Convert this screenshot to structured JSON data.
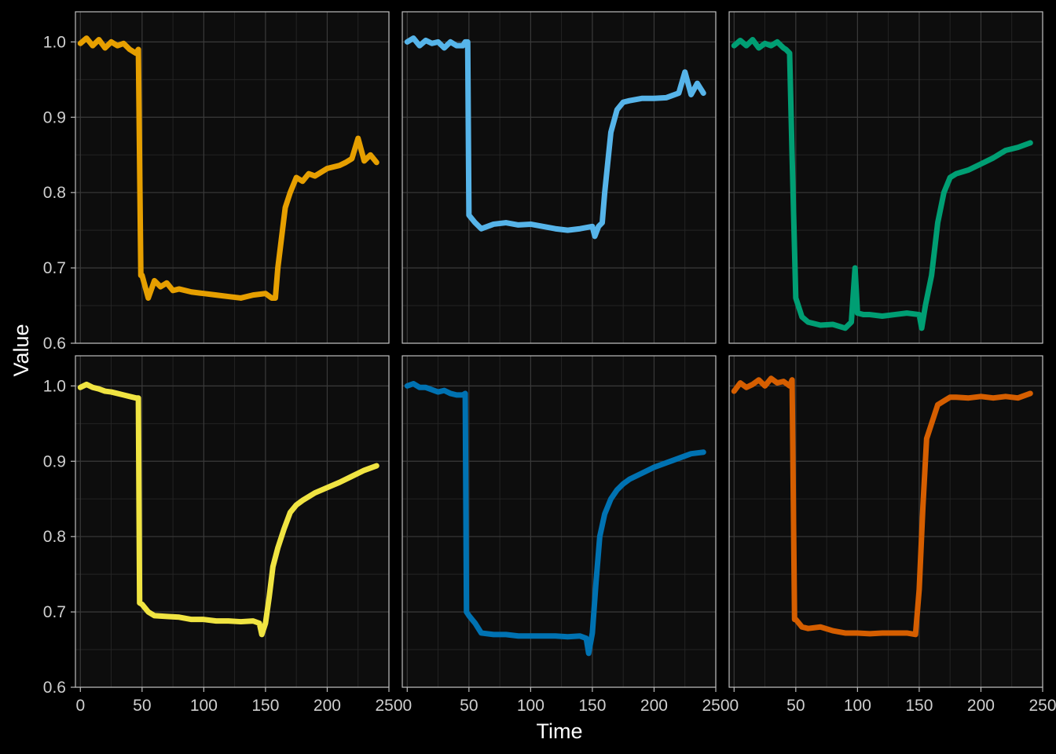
{
  "chart_data": {
    "type": "line",
    "layout": "facet grid, 2 rows x 3 columns, shared axes",
    "xlabel": "Time",
    "ylabel": "Value",
    "xlim": [
      -4,
      250
    ],
    "ylim": [
      0.6,
      1.04
    ],
    "xticks": [
      0,
      50,
      100,
      150,
      200,
      250
    ],
    "yticks": [
      0.6,
      0.7,
      0.8,
      0.9,
      1.0
    ],
    "ytick_labels": [
      "0.6",
      "0.7",
      "0.8",
      "0.9",
      "1.0"
    ],
    "background": "#000000",
    "panel_background": "#0d0d0d",
    "panels": [
      {
        "row": 0,
        "col": 0,
        "color": "#E69F00",
        "x": [
          0,
          5,
          10,
          15,
          20,
          25,
          30,
          35,
          40,
          45,
          47,
          49,
          50,
          55,
          60,
          65,
          70,
          75,
          80,
          90,
          100,
          110,
          120,
          130,
          140,
          150,
          155,
          158,
          160,
          163,
          166,
          170,
          175,
          180,
          185,
          190,
          200,
          210,
          215,
          220,
          225,
          230,
          235,
          240
        ],
        "values": [
          0.998,
          1.005,
          0.995,
          1.003,
          0.992,
          1.0,
          0.995,
          0.998,
          0.99,
          0.985,
          0.99,
          0.69,
          0.69,
          0.66,
          0.683,
          0.675,
          0.68,
          0.67,
          0.672,
          0.668,
          0.666,
          0.664,
          0.662,
          0.66,
          0.664,
          0.666,
          0.66,
          0.66,
          0.7,
          0.74,
          0.78,
          0.8,
          0.82,
          0.815,
          0.825,
          0.822,
          0.832,
          0.836,
          0.84,
          0.845,
          0.872,
          0.842,
          0.85,
          0.84
        ]
      },
      {
        "row": 0,
        "col": 1,
        "color": "#56B4E9",
        "x": [
          0,
          5,
          10,
          15,
          20,
          25,
          30,
          35,
          40,
          45,
          47,
          49,
          50,
          55,
          60,
          70,
          80,
          90,
          100,
          110,
          120,
          130,
          140,
          150,
          152,
          155,
          158,
          160,
          165,
          170,
          175,
          180,
          190,
          200,
          210,
          220,
          225,
          230,
          235,
          240
        ],
        "values": [
          1.0,
          1.005,
          0.995,
          1.002,
          0.998,
          1.0,
          0.992,
          1.0,
          0.995,
          0.995,
          1.0,
          1.0,
          0.77,
          0.76,
          0.752,
          0.758,
          0.76,
          0.757,
          0.758,
          0.755,
          0.752,
          0.75,
          0.752,
          0.755,
          0.742,
          0.755,
          0.76,
          0.8,
          0.88,
          0.91,
          0.92,
          0.922,
          0.925,
          0.925,
          0.926,
          0.932,
          0.96,
          0.93,
          0.945,
          0.932
        ]
      },
      {
        "row": 0,
        "col": 2,
        "color": "#009E73",
        "x": [
          0,
          5,
          10,
          15,
          20,
          25,
          30,
          35,
          40,
          42,
          45,
          47,
          50,
          55,
          60,
          70,
          80,
          90,
          95,
          98,
          100,
          105,
          110,
          120,
          130,
          140,
          150,
          152,
          155,
          160,
          165,
          170,
          175,
          180,
          190,
          200,
          210,
          220,
          230,
          240
        ],
        "values": [
          0.995,
          1.002,
          0.995,
          1.003,
          0.992,
          0.998,
          0.995,
          1.0,
          0.992,
          0.99,
          0.985,
          0.85,
          0.66,
          0.635,
          0.628,
          0.624,
          0.625,
          0.62,
          0.628,
          0.7,
          0.64,
          0.638,
          0.638,
          0.636,
          0.638,
          0.64,
          0.638,
          0.62,
          0.65,
          0.69,
          0.76,
          0.8,
          0.82,
          0.825,
          0.83,
          0.838,
          0.846,
          0.856,
          0.86,
          0.866
        ]
      },
      {
        "row": 1,
        "col": 0,
        "color": "#F0E442",
        "x": [
          0,
          5,
          10,
          15,
          20,
          25,
          30,
          35,
          40,
          45,
          47,
          48,
          50,
          55,
          60,
          70,
          80,
          90,
          100,
          110,
          120,
          130,
          140,
          145,
          147,
          150,
          153,
          156,
          160,
          165,
          170,
          175,
          180,
          190,
          200,
          210,
          220,
          230,
          240
        ],
        "values": [
          0.998,
          1.002,
          0.998,
          0.996,
          0.993,
          0.992,
          0.99,
          0.988,
          0.986,
          0.984,
          0.984,
          0.712,
          0.71,
          0.7,
          0.695,
          0.694,
          0.693,
          0.69,
          0.69,
          0.688,
          0.688,
          0.687,
          0.688,
          0.685,
          0.67,
          0.685,
          0.72,
          0.76,
          0.785,
          0.81,
          0.832,
          0.842,
          0.848,
          0.858,
          0.865,
          0.872,
          0.88,
          0.888,
          0.894
        ]
      },
      {
        "row": 1,
        "col": 1,
        "color": "#0072B2",
        "x": [
          0,
          5,
          10,
          15,
          20,
          25,
          30,
          35,
          40,
          45,
          47,
          48,
          50,
          55,
          60,
          70,
          80,
          90,
          100,
          110,
          120,
          130,
          140,
          145,
          147,
          150,
          153,
          156,
          160,
          165,
          170,
          175,
          180,
          190,
          200,
          210,
          220,
          230,
          240
        ],
        "values": [
          1.0,
          1.003,
          0.998,
          0.998,
          0.995,
          0.992,
          0.994,
          0.99,
          0.988,
          0.988,
          0.99,
          0.7,
          0.695,
          0.685,
          0.672,
          0.67,
          0.67,
          0.668,
          0.668,
          0.668,
          0.668,
          0.667,
          0.668,
          0.665,
          0.645,
          0.672,
          0.74,
          0.8,
          0.83,
          0.85,
          0.862,
          0.87,
          0.876,
          0.884,
          0.892,
          0.898,
          0.904,
          0.91,
          0.912
        ]
      },
      {
        "row": 1,
        "col": 2,
        "color": "#D55E00",
        "x": [
          0,
          5,
          10,
          15,
          20,
          25,
          30,
          35,
          40,
          45,
          47,
          49,
          50,
          55,
          60,
          70,
          80,
          90,
          100,
          110,
          120,
          130,
          140,
          147,
          150,
          153,
          156,
          160,
          165,
          170,
          175,
          180,
          190,
          200,
          210,
          220,
          230,
          240
        ],
        "values": [
          0.993,
          1.004,
          0.998,
          1.002,
          1.008,
          1.0,
          1.01,
          1.004,
          1.006,
          1.0,
          1.008,
          0.69,
          0.69,
          0.68,
          0.678,
          0.68,
          0.675,
          0.672,
          0.672,
          0.671,
          0.672,
          0.672,
          0.672,
          0.67,
          0.73,
          0.84,
          0.93,
          0.95,
          0.975,
          0.98,
          0.985,
          0.985,
          0.984,
          0.986,
          0.984,
          0.986,
          0.984,
          0.99
        ]
      }
    ]
  }
}
